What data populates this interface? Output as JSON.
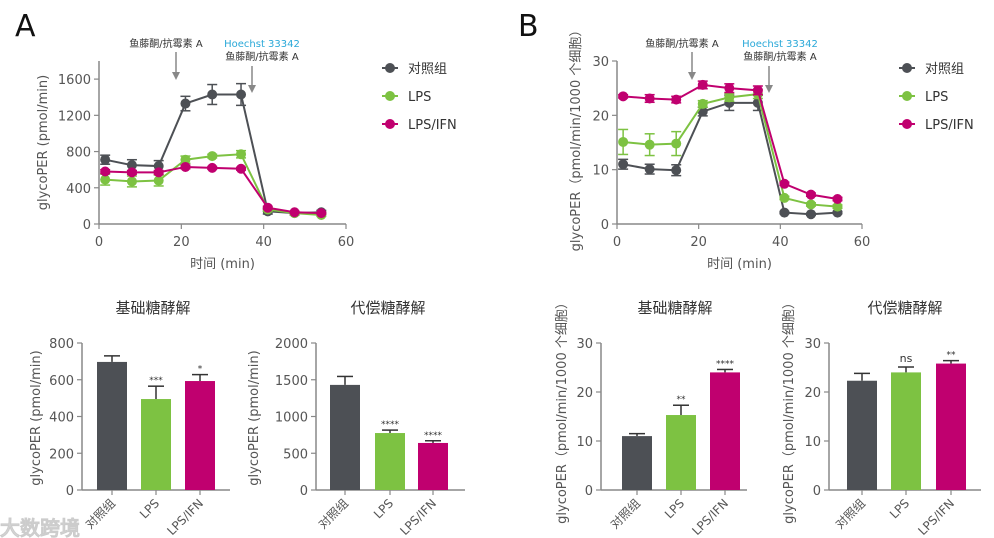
{
  "colors": {
    "control": "#4d5055",
    "lps": "#7dc242",
    "lps_ifn": "#c0006f",
    "axis": "#888888",
    "text": "#555555",
    "hoechst": "#29a8d8"
  },
  "watermark": "大数跨境",
  "legend": [
    "对照组",
    "LPS",
    "LPS/IFN"
  ],
  "chart_data": [
    {
      "id": "A-line",
      "panel_label": "A",
      "type": "line",
      "xlabel": "时间 (min)",
      "ylabel": "glycoPER (pmol/min)",
      "xlim": [
        0,
        60
      ],
      "ylim": [
        0,
        1800
      ],
      "xticks": [
        0,
        20,
        40,
        60
      ],
      "yticks": [
        0,
        400,
        800,
        1200,
        1600
      ],
      "annotations": {
        "inject1": "鱼藤酮/抗霉素 A",
        "inject2_top": "Hoechst 33342",
        "inject2_bottom": "鱼藤酮/抗霉素 A"
      },
      "injections": [
        18.5,
        37
      ],
      "x": [
        1.5,
        8,
        14.5,
        21,
        27.5,
        34.5,
        41,
        47.5,
        54
      ],
      "series": [
        {
          "name": "对照组",
          "values": [
            710,
            650,
            640,
            1330,
            1430,
            1430,
            140,
            120,
            130
          ],
          "errors": [
            50,
            60,
            60,
            80,
            110,
            120,
            30,
            20,
            20
          ]
        },
        {
          "name": "LPS",
          "values": [
            490,
            470,
            480,
            710,
            750,
            770,
            160,
            120,
            100
          ],
          "errors": [
            60,
            60,
            60,
            40,
            20,
            40,
            20,
            15,
            15
          ]
        },
        {
          "name": "LPS/IFN",
          "values": [
            580,
            570,
            570,
            630,
            620,
            610,
            180,
            130,
            120
          ],
          "errors": [
            20,
            20,
            20,
            20,
            15,
            15,
            15,
            10,
            10
          ]
        }
      ]
    },
    {
      "id": "B-line",
      "panel_label": "B",
      "type": "line",
      "xlabel": "时间 (min)",
      "ylabel": "glycoPER（pmol/min/1000 个细胞）",
      "xlim": [
        0,
        60
      ],
      "ylim": [
        0,
        30
      ],
      "xticks": [
        0,
        20,
        40,
        60
      ],
      "yticks": [
        0,
        10,
        20,
        30
      ],
      "annotations": {
        "inject1": "鱼藤酮/抗霉素 A",
        "inject2_top": "Hoechst 33342",
        "inject2_bottom": "鱼藤酮/抗霉素 A"
      },
      "injections": [
        18.5,
        37
      ],
      "x": [
        1.5,
        8,
        14.5,
        21,
        27.5,
        34.5,
        41,
        47.5,
        54
      ],
      "series": [
        {
          "name": "对照组",
          "values": [
            11,
            10.1,
            9.9,
            20.7,
            22.3,
            22.3,
            2.1,
            1.8,
            2.1
          ],
          "errors": [
            0.9,
            0.9,
            1.0,
            0.8,
            1.4,
            1.4,
            0.2,
            0.2,
            0.2
          ]
        },
        {
          "name": "LPS",
          "values": [
            15.1,
            14.6,
            14.8,
            22.1,
            23.3,
            23.9,
            4.8,
            3.6,
            3.2
          ],
          "errors": [
            2.3,
            2.0,
            2.2,
            0.6,
            0.7,
            0.8,
            0.3,
            0.3,
            0.3
          ]
        },
        {
          "name": "LPS/IFN",
          "values": [
            23.5,
            23.1,
            22.9,
            25.6,
            25.0,
            24.6,
            7.4,
            5.4,
            4.6
          ],
          "errors": [
            0.3,
            0.7,
            0.6,
            0.7,
            0.8,
            0.8,
            0.3,
            0.3,
            0.3
          ]
        }
      ]
    },
    {
      "id": "A-basal",
      "type": "bar",
      "title": "基础糖酵解",
      "ylabel": "glycoPER (pmol/min)",
      "ylim": [
        0,
        800
      ],
      "yticks": [
        0,
        200,
        400,
        600,
        800
      ],
      "categories": [
        "对照组",
        "LPS",
        "LPS/IFN"
      ],
      "values": [
        697,
        495,
        593
      ],
      "errors": [
        33,
        70,
        35
      ],
      "significance": [
        "",
        "***",
        "*"
      ]
    },
    {
      "id": "A-comp",
      "type": "bar",
      "title": "代偿糖酵解",
      "ylabel": "glycoPER (pmol/min)",
      "ylim": [
        0,
        2000
      ],
      "yticks": [
        0,
        500,
        1000,
        1500,
        2000
      ],
      "categories": [
        "对照组",
        "LPS",
        "LPS/IFN"
      ],
      "values": [
        1430,
        775,
        640
      ],
      "errors": [
        115,
        40,
        30
      ],
      "significance": [
        "",
        "****",
        "****"
      ]
    },
    {
      "id": "B-basal",
      "type": "bar",
      "title": "基础糖酵解",
      "ylabel": "glycoPER（pmol/min/1000 个细胞）",
      "ylim": [
        0,
        30
      ],
      "yticks": [
        0,
        10,
        20,
        30
      ],
      "categories": [
        "对照组",
        "LPS",
        "LPS/IFN"
      ],
      "values": [
        11,
        15.3,
        24
      ],
      "errors": [
        0.5,
        2,
        0.6
      ],
      "significance": [
        "",
        "**",
        "****"
      ]
    },
    {
      "id": "B-comp",
      "type": "bar",
      "title": "代偿糖酵解",
      "ylabel": "glycoPER（pmol/min/1000 个细胞）",
      "ylim": [
        0,
        30
      ],
      "yticks": [
        0,
        10,
        20,
        30
      ],
      "categories": [
        "对照组",
        "LPS",
        "LPS/IFN"
      ],
      "values": [
        22.3,
        24,
        25.8
      ],
      "errors": [
        1.5,
        1.1,
        0.6
      ],
      "significance": [
        "",
        "ns",
        "**"
      ]
    }
  ]
}
